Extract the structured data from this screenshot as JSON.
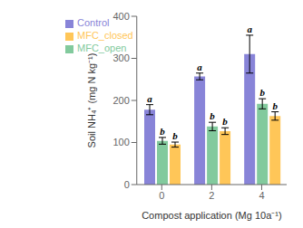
{
  "chart_data": {
    "type": "bar",
    "xlabel": "Compost application (Mg 10a⁻¹)",
    "ylabel": "Soil NH₄⁺ (mg N kg⁻¹)",
    "categories": [
      "0",
      "2",
      "4"
    ],
    "series": [
      {
        "name": "Control",
        "values": [
          178,
          257,
          310
        ],
        "errors": [
          12,
          8,
          45
        ],
        "letters": [
          "a",
          "a",
          "a"
        ]
      },
      {
        "name": "MFC_open",
        "values": [
          104,
          138,
          192
        ],
        "errors": [
          8,
          10,
          12
        ],
        "letters": [
          "b",
          "b",
          "b"
        ]
      },
      {
        "name": "MFC_closed",
        "values": [
          95,
          127,
          163
        ],
        "errors": [
          6,
          8,
          10
        ],
        "letters": [
          "b",
          "b",
          "b"
        ]
      }
    ],
    "ylim": [
      0,
      400
    ],
    "yticks": [
      0,
      100,
      200,
      300,
      400
    ],
    "grid": false,
    "legend": "upper left"
  }
}
